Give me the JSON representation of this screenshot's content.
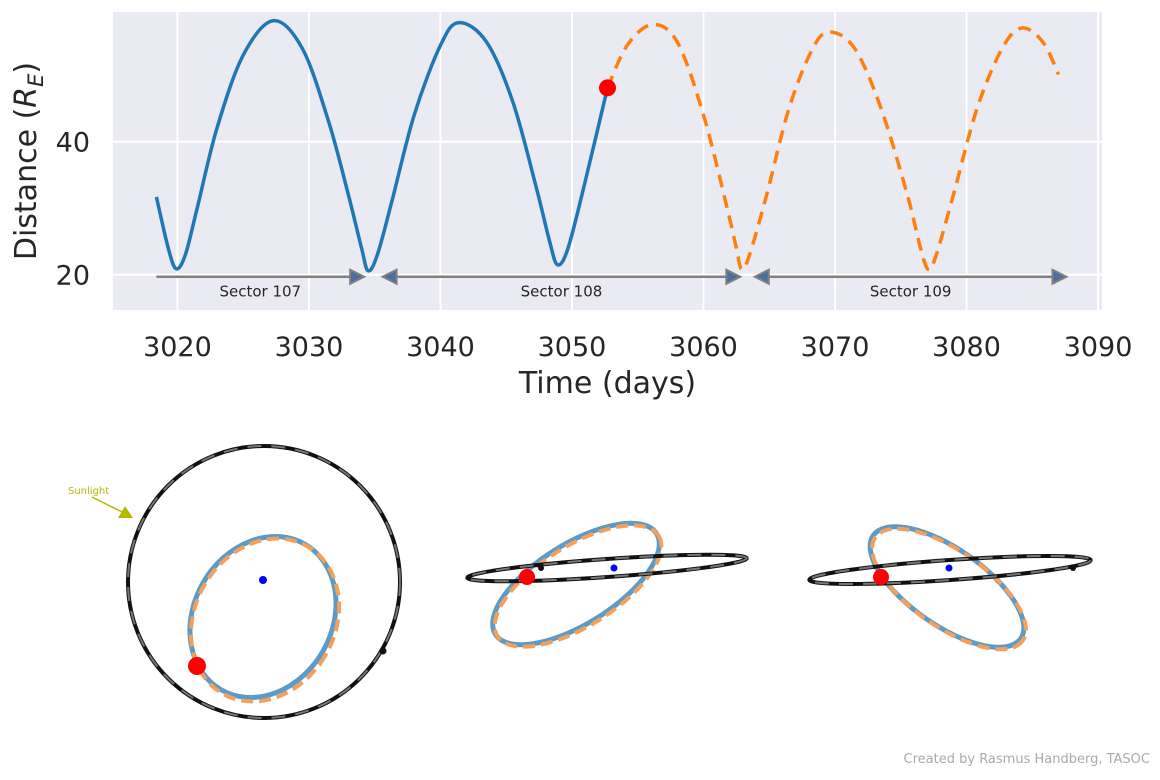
{
  "chart_data": {
    "type": "line",
    "xlabel": "Time (days)",
    "ylabel": [
      "Distance (",
      "R",
      "E",
      ")"
    ],
    "xlim": [
      3015.1,
      3090.3
    ],
    "xticks": [
      3020,
      3030,
      3040,
      3050,
      3060,
      3070,
      3080,
      3090
    ],
    "ylim": [
      14.7,
      59.5
    ],
    "yticks": [
      20,
      40
    ],
    "grid": true,
    "background": "#eaeaf2",
    "series": [
      {
        "color": "#1f77b4",
        "dashed": false,
        "x": [
          3018.4,
          3019.3,
          3019.9,
          3020.6,
          3021.5,
          3023,
          3025,
          3027.3,
          3029.5,
          3031.5,
          3033,
          3034.0,
          3034.5,
          3035.2,
          3036.3,
          3038,
          3040,
          3041.4,
          3043.5,
          3045.5,
          3047.3,
          3048.3,
          3048.9,
          3049.7,
          3051,
          3052.7
        ],
        "values": [
          31.7,
          24,
          20.9,
          23,
          30,
          42,
          53,
          58.2,
          54,
          43,
          32,
          24,
          20.6,
          23,
          31,
          44,
          54.5,
          57.9,
          55,
          46,
          33,
          25,
          21.5,
          24,
          34,
          48.1
        ]
      },
      {
        "color": "#ff7f0e",
        "dashed": true,
        "x": [
          3052.7,
          3054.2,
          3056.1,
          3058,
          3060,
          3061.8,
          3062.5,
          3062.9,
          3063.5,
          3064.8,
          3066.5,
          3068.3,
          3069.6,
          3071.5,
          3073.5,
          3075.5,
          3076.5,
          3077.1,
          3077.7,
          3079,
          3080.8,
          3082.7,
          3084.2,
          3085.8,
          3087.0
        ],
        "values": [
          48.1,
          54.5,
          57.6,
          55,
          44,
          30,
          24,
          20.8,
          23,
          32,
          45,
          54,
          56.5,
          54,
          45,
          32,
          24,
          20.8,
          23,
          32,
          45,
          54,
          57.1,
          55,
          50.1
        ]
      }
    ],
    "marker": {
      "x": 3052.7,
      "y": 48.1,
      "color": "#ff0000"
    },
    "sector_y": 19.7,
    "sectors": [
      {
        "label": "Sector 107",
        "start": 3018.4,
        "end": 3034.2
      },
      {
        "label": "Sector 108",
        "start": 3035.6,
        "end": 3062.8
      },
      {
        "label": "Sector 109",
        "start": 3063.9,
        "end": 3087.6
      }
    ]
  },
  "orbit_views": {
    "sunlight_label": "Sunlight"
  },
  "credit": "Created by Rasmus Handberg, TASOC"
}
